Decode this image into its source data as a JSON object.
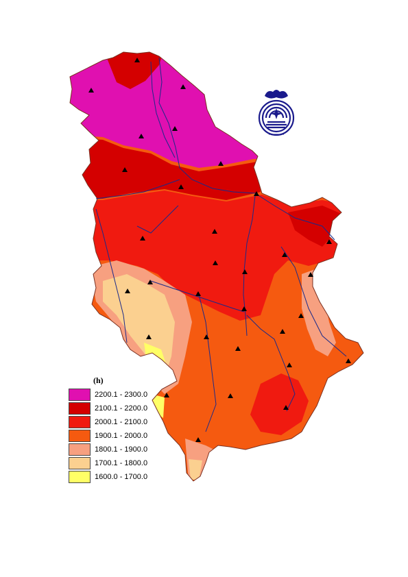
{
  "legend": {
    "title": "(h)",
    "items": [
      {
        "label": "2200.1 - 2300.0",
        "color": "#e010b0"
      },
      {
        "label": "2100.1 - 2200.0",
        "color": "#d40000"
      },
      {
        "label": "2000.1 - 2100.0",
        "color": "#f01a10"
      },
      {
        "label": "1900.1 - 2000.0",
        "color": "#f55a10"
      },
      {
        "label": "1800.1 - 1900.0",
        "color": "#f7a080"
      },
      {
        "label": "1700.1 - 1800.0",
        "color": "#fbd090"
      },
      {
        "label": "1600.0 - 1700.0",
        "color": "#ffff66"
      }
    ]
  },
  "logo": {
    "color": "#1a1a8c",
    "icon": "institute-emblem-icon"
  }
}
